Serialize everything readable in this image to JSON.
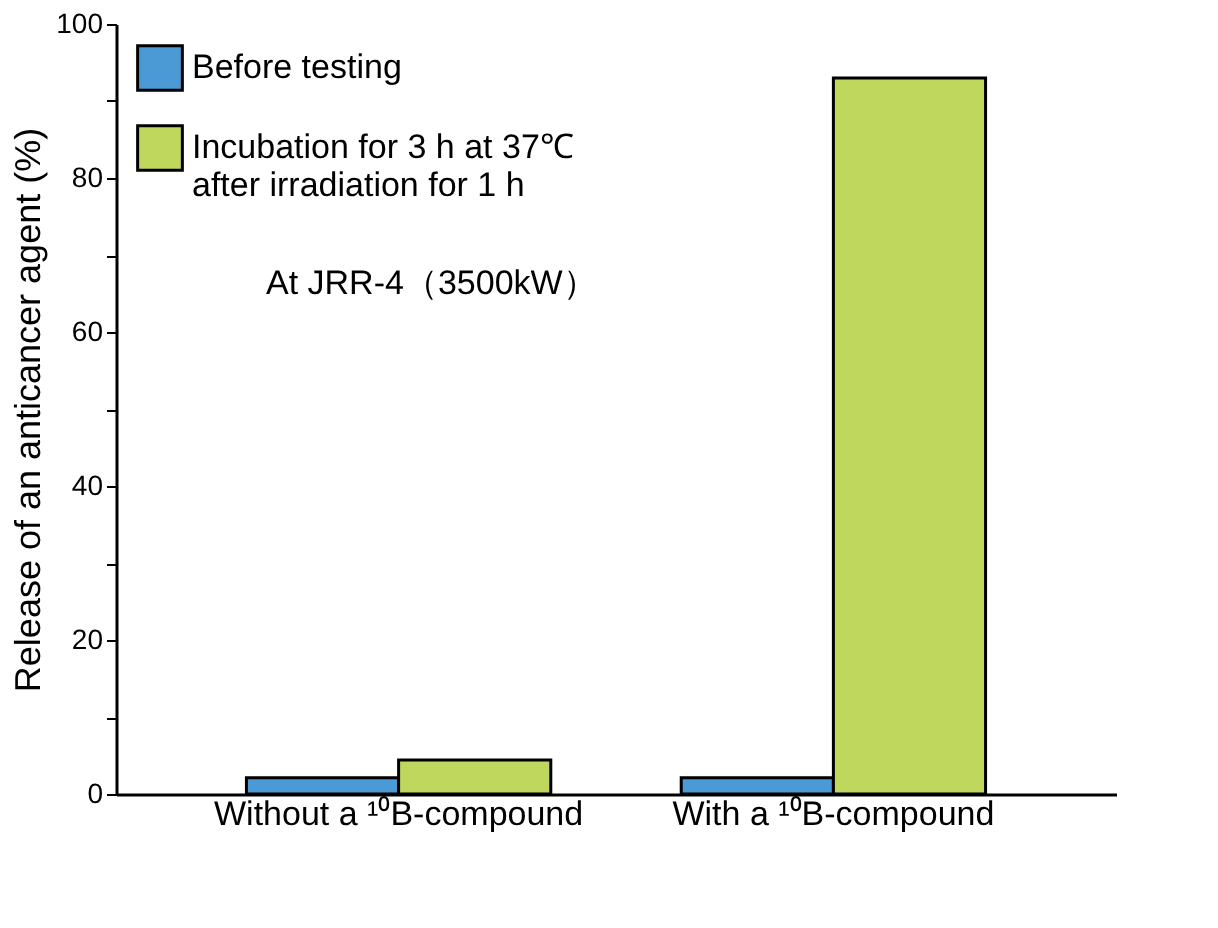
{
  "chart_data": {
    "type": "bar",
    "ylabel": "Release of an anticancer agent (%)",
    "categories": [
      "Without a ¹⁰B-compound",
      "With a ¹⁰B-compound"
    ],
    "series": [
      {
        "name": "Before testing",
        "color": "#4b9ad6",
        "values": [
          2.1,
          2.1
        ]
      },
      {
        "name": "Incubation for 3 h at 37℃ after irradiation for 1 h",
        "color": "#bed75c",
        "values": [
          4.4,
          93.0
        ]
      }
    ],
    "ylim": [
      0,
      100
    ],
    "yticks": [
      0,
      {
        "value": 10,
        "label": null
      },
      20,
      {
        "value": 30,
        "label": null
      },
      40,
      {
        "value": 50,
        "label": null
      },
      60,
      {
        "value": 70,
        "label": null
      },
      80,
      {
        "value": 90,
        "label": null
      },
      100
    ],
    "annotations": [
      "At JRR-4（3500kW）"
    ],
    "legend": "top left",
    "grid": false
  }
}
